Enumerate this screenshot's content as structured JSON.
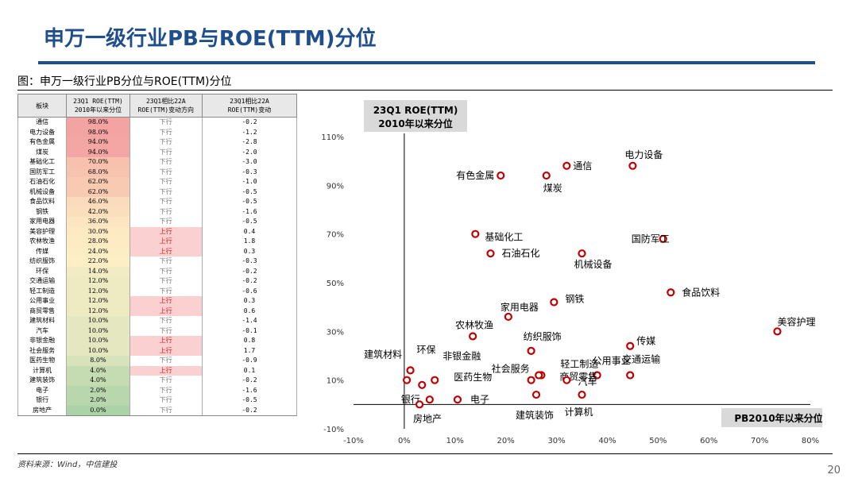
{
  "page": {
    "title": "申万一级行业PB与ROE(TTM)分位",
    "caption": "图：申万一级行业PB分位与ROE(TTM)分位",
    "source": "资料来源：Wind，中信建投",
    "page_number": "20"
  },
  "table": {
    "headers": [
      "板块",
      "23Q1 ROE(TTM)\n2010年以来分位",
      "23Q1相比22A\nROE(TTM)变动方向",
      "23Q1相比22A\nROE(TTM)变动"
    ],
    "rows": [
      {
        "sector": "通信",
        "pct": "98.0%",
        "dir": "下行",
        "chg": "-0.2",
        "color": "#f4a3a3"
      },
      {
        "sector": "电力设备",
        "pct": "98.0%",
        "dir": "下行",
        "chg": "-1.2",
        "color": "#f4a3a3"
      },
      {
        "sector": "有色金属",
        "pct": "94.0%",
        "dir": "下行",
        "chg": "-2.8",
        "color": "#f4a6a4"
      },
      {
        "sector": "煤炭",
        "pct": "94.0%",
        "dir": "下行",
        "chg": "-2.0",
        "color": "#f4a6a4"
      },
      {
        "sector": "基础化工",
        "pct": "70.0%",
        "dir": "下行",
        "chg": "-3.0",
        "color": "#f7c1ae"
      },
      {
        "sector": "国防军工",
        "pct": "68.0%",
        "dir": "下行",
        "chg": "-0.3",
        "color": "#f7c3af"
      },
      {
        "sector": "石油石化",
        "pct": "62.0%",
        "dir": "下行",
        "chg": "-1.0",
        "color": "#f8cab2"
      },
      {
        "sector": "机械设备",
        "pct": "62.0%",
        "dir": "下行",
        "chg": "-0.5",
        "color": "#f8cab2"
      },
      {
        "sector": "食品饮料",
        "pct": "46.0%",
        "dir": "下行",
        "chg": "-0.5",
        "color": "#fadbbb"
      },
      {
        "sector": "钢铁",
        "pct": "42.0%",
        "dir": "下行",
        "chg": "-1.6",
        "color": "#fbdfbd"
      },
      {
        "sector": "家用电器",
        "pct": "36.0%",
        "dir": "下行",
        "chg": "-0.5",
        "color": "#fce5c0"
      },
      {
        "sector": "美容护理",
        "pct": "30.0%",
        "dir": "上行",
        "chg": "0.4",
        "color": "#fde9c2"
      },
      {
        "sector": "农林牧渔",
        "pct": "28.0%",
        "dir": "上行",
        "chg": "1.8",
        "color": "#fdebc3"
      },
      {
        "sector": "传媒",
        "pct": "24.0%",
        "dir": "上行",
        "chg": "0.3",
        "color": "#fdedc4"
      },
      {
        "sector": "纺织服饰",
        "pct": "22.0%",
        "dir": "下行",
        "chg": "-0.3",
        "color": "#fdeec5"
      },
      {
        "sector": "环保",
        "pct": "14.0%",
        "dir": "下行",
        "chg": "-0.2",
        "color": "#f2ecc4"
      },
      {
        "sector": "交通运输",
        "pct": "12.0%",
        "dir": "下行",
        "chg": "-0.2",
        "color": "#eeeac2"
      },
      {
        "sector": "轻工制造",
        "pct": "12.0%",
        "dir": "下行",
        "chg": "-0.6",
        "color": "#eeeac2"
      },
      {
        "sector": "公用事业",
        "pct": "12.0%",
        "dir": "上行",
        "chg": "0.3",
        "color": "#eeeac2"
      },
      {
        "sector": "商贸零售",
        "pct": "12.0%",
        "dir": "上行",
        "chg": "0.6",
        "color": "#eeeac2"
      },
      {
        "sector": "建筑材料",
        "pct": "10.0%",
        "dir": "下行",
        "chg": "-1.4",
        "color": "#e4e7bf"
      },
      {
        "sector": "汽车",
        "pct": "10.0%",
        "dir": "下行",
        "chg": "-0.1",
        "color": "#e4e7bf"
      },
      {
        "sector": "非银金融",
        "pct": "10.0%",
        "dir": "上行",
        "chg": "0.8",
        "color": "#e4e7bf"
      },
      {
        "sector": "社会服务",
        "pct": "10.0%",
        "dir": "上行",
        "chg": "1.7",
        "color": "#e4e7bf"
      },
      {
        "sector": "医药生物",
        "pct": "8.0%",
        "dir": "下行",
        "chg": "-0.9",
        "color": "#d9e3bb"
      },
      {
        "sector": "计算机",
        "pct": "4.0%",
        "dir": "上行",
        "chg": "0.1",
        "color": "#c5dcb2"
      },
      {
        "sector": "建筑装饰",
        "pct": "4.0%",
        "dir": "下行",
        "chg": "-0.2",
        "color": "#c5dcb2"
      },
      {
        "sector": "电子",
        "pct": "2.0%",
        "dir": "下行",
        "chg": "-1.6",
        "color": "#b8d7ad"
      },
      {
        "sector": "银行",
        "pct": "2.0%",
        "dir": "下行",
        "chg": "-0.5",
        "color": "#b8d7ad"
      },
      {
        "sector": "房地产",
        "pct": "0.0%",
        "dir": "下行",
        "chg": "-0.2",
        "color": "#acd2a8"
      }
    ],
    "up_fill": "#fbd0d0"
  },
  "chart_data": {
    "type": "scatter",
    "y_box_label_1": "23Q1 ROE(TTM)",
    "y_box_label_2": "2010年以来分位",
    "x_box_label": "PB2010年以来分位",
    "xlim": [
      -10,
      80
    ],
    "ylim": [
      -10,
      110
    ],
    "x_ticks": [
      "-10%",
      "0%",
      "10%",
      "20%",
      "30%",
      "40%",
      "50%",
      "60%",
      "70%",
      "80%"
    ],
    "y_ticks": [
      "110%",
      "90%",
      "70%",
      "50%",
      "30%",
      "10%",
      "-10%"
    ],
    "marker_color": "#c00000",
    "points": [
      {
        "label": "通信",
        "x": 32,
        "y": 98
      },
      {
        "label": "电力设备",
        "x": 45,
        "y": 98
      },
      {
        "label": "有色金属",
        "x": 19,
        "y": 94
      },
      {
        "label": "煤炭",
        "x": 28,
        "y": 94
      },
      {
        "label": "基础化工",
        "x": 14,
        "y": 70
      },
      {
        "label": "国防军工",
        "x": 51,
        "y": 68
      },
      {
        "label": "石油石化",
        "x": 17,
        "y": 62
      },
      {
        "label": "机械设备",
        "x": 35,
        "y": 62
      },
      {
        "label": "食品饮料",
        "x": 52.5,
        "y": 46
      },
      {
        "label": "钢铁",
        "x": 29.5,
        "y": 42
      },
      {
        "label": "家用电器",
        "x": 20.5,
        "y": 36
      },
      {
        "label": "美容护理",
        "x": 73.5,
        "y": 30
      },
      {
        "label": "农林牧渔",
        "x": 13.5,
        "y": 28
      },
      {
        "label": "传媒",
        "x": 44.5,
        "y": 24
      },
      {
        "label": "纺织服饰",
        "x": 25,
        "y": 22
      },
      {
        "label": "环保",
        "x": 1.2,
        "y": 14
      },
      {
        "label": "交通运输",
        "x": 44.5,
        "y": 12
      },
      {
        "label": "轻工制造",
        "x": 27,
        "y": 12
      },
      {
        "label": "公用事业",
        "x": 38,
        "y": 12
      },
      {
        "label": "商贸零售",
        "x": 26.5,
        "y": 12
      },
      {
        "label": "建筑材料",
        "x": 0.5,
        "y": 10
      },
      {
        "label": "汽车",
        "x": 32,
        "y": 10
      },
      {
        "label": "非银金融",
        "x": 6,
        "y": 10
      },
      {
        "label": "社会服务",
        "x": 25,
        "y": 10
      },
      {
        "label": "医药生物",
        "x": 3.5,
        "y": 8
      },
      {
        "label": "计算机",
        "x": 35,
        "y": 4
      },
      {
        "label": "建筑装饰",
        "x": 26,
        "y": 4
      },
      {
        "label": "电子",
        "x": 10.5,
        "y": 2
      },
      {
        "label": "银行",
        "x": 5,
        "y": 2
      },
      {
        "label": "房地产",
        "x": 3,
        "y": 0
      }
    ]
  }
}
